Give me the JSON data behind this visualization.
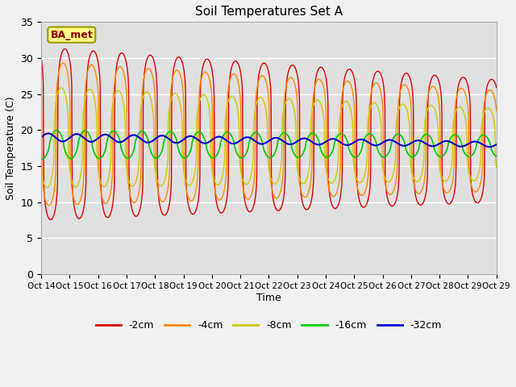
{
  "title": "Soil Temperatures Set A",
  "xlabel": "Time",
  "ylabel": "Soil Temperature (C)",
  "ylim": [
    0,
    35
  ],
  "yticks": [
    0,
    5,
    10,
    15,
    20,
    25,
    30,
    35
  ],
  "x_labels": [
    "Oct 14",
    "Oct 15",
    "Oct 16",
    "Oct 17",
    "Oct 18",
    "Oct 19",
    "Oct 20",
    "Oct 21",
    "Oct 22",
    "Oct 23",
    "Oct 24",
    "Oct 25",
    "Oct 26",
    "Oct 27",
    "Oct 28",
    "Oct 29",
    "Oct 29"
  ],
  "legend_labels": [
    "-2cm",
    "-4cm",
    "-8cm",
    "-16cm",
    "-32cm"
  ],
  "legend_colors": [
    "#dd0000",
    "#ff8800",
    "#cccc00",
    "#00cc00",
    "#0000cc"
  ],
  "background_color": "#e0e0e0",
  "outer_bg": "#f0f0f0",
  "ba_met_label": "BA_met",
  "n_points_per_day": 96,
  "n_days": 16
}
